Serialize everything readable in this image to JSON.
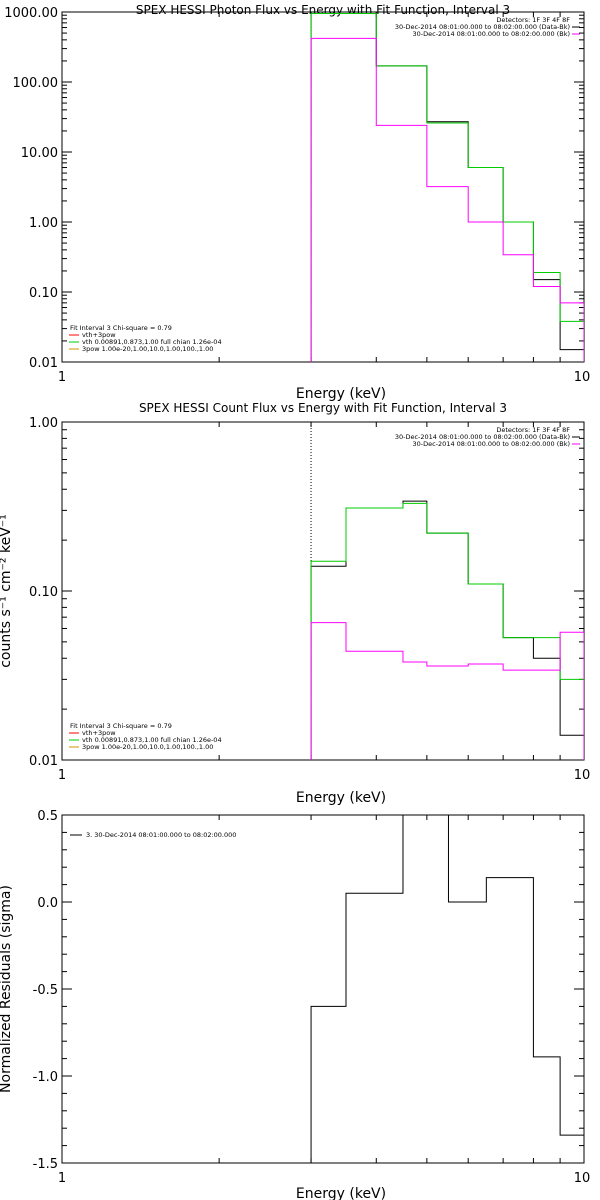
{
  "chart_data": [
    {
      "type": "line",
      "title": "SPEX HESSI Photon Flux vs Energy with Fit Function, Interval 3",
      "xlabel": "Energy (keV)",
      "ylabel": "",
      "xscale": "log",
      "yscale": "log",
      "xlim": [
        1,
        10
      ],
      "ylim": [
        0.01,
        1000
      ],
      "xticks": [
        "1",
        "10"
      ],
      "yticks": [
        {
          "v": 0.01,
          "label": "0.01"
        },
        {
          "v": 0.1,
          "label": "0.10"
        },
        {
          "v": 1,
          "label": "1.00"
        },
        {
          "v": 10,
          "label": "10.00"
        },
        {
          "v": 100,
          "label": "100.00"
        },
        {
          "v": 1000,
          "label": "1000.00"
        }
      ],
      "vline_x": 3.0,
      "legend_top_right": [
        {
          "text": "Detectors: 1F 3F 4F 8F",
          "color": ""
        },
        {
          "text": "30-Dec-2014 08:01:00.000 to 08:02:00.000 (Data-Bk)",
          "color": "#000000"
        },
        {
          "text": "30-Dec-2014 08:01:00.000 to 08:02:00.000 (Bk)",
          "color": "#ff00ff"
        }
      ],
      "legend_bottom_left": [
        {
          "text": "Fit Interval 3   Chi-square = 0.79",
          "color": ""
        },
        {
          "text": "vth+3pow",
          "color": "#ff0000"
        },
        {
          "text": "vth 0.00891,0.873,1.00  full chian 1.26e-04",
          "color": "#00cc00"
        },
        {
          "text": "3pow 1.00e-20,1.00,10.0,1.00,100.,1.00",
          "color": "#cc9900"
        }
      ],
      "edges": [
        3.0,
        3.5,
        4.0,
        4.5,
        5.0,
        5.5,
        6.0,
        6.5,
        7.0,
        8.0,
        9.0,
        10.0
      ],
      "series": [
        {
          "color": "#000000",
          "values": [
            1000,
            1000,
            170,
            170,
            27,
            27,
            6.0,
            6.0,
            1.0,
            0.15,
            0.015
          ]
        },
        {
          "color": "#00cc00",
          "values": [
            950,
            950,
            170,
            170,
            26,
            26,
            6.0,
            6.0,
            1.0,
            0.19,
            0.038
          ]
        },
        {
          "color": "#ff00ff",
          "values": [
            420,
            420,
            24,
            24,
            3.2,
            3.2,
            1.0,
            1.0,
            0.34,
            0.12,
            0.07
          ]
        }
      ]
    },
    {
      "type": "line",
      "title": "SPEX HESSI Count Flux vs Energy with Fit Function, Interval 3",
      "xlabel": "Energy (keV)",
      "ylabel": "counts s⁻¹ cm⁻² keV⁻¹",
      "xscale": "log",
      "yscale": "log",
      "xlim": [
        1,
        10
      ],
      "ylim": [
        0.01,
        1
      ],
      "xticks": [
        "1",
        "10"
      ],
      "yticks": [
        {
          "v": 0.01,
          "label": "0.01"
        },
        {
          "v": 0.1,
          "label": "0.10"
        },
        {
          "v": 1,
          "label": "1.00"
        }
      ],
      "vline_x": 3.0,
      "legend_top_right": [
        {
          "text": "Detectors: 1F 3F 4F 8F",
          "color": ""
        },
        {
          "text": "30-Dec-2014 08:01:00.000 to 08:02:00.000 (Data-Bk)",
          "color": "#000000"
        },
        {
          "text": "30-Dec-2014 08:01:00.000 to 08:02:00.000 (Bk)",
          "color": "#ff00ff"
        }
      ],
      "legend_bottom_left": [
        {
          "text": "Fit Interval 3   Chi-square = 0.79",
          "color": ""
        },
        {
          "text": "vth+3pow",
          "color": "#ff0000"
        },
        {
          "text": "vth 0.00891,0.873,1.00  full chian 1.26e-04",
          "color": "#00cc00"
        },
        {
          "text": "3pow 1.00e-20,1.00,10.0,1.00,100.,1.00",
          "color": "#cc9900"
        }
      ],
      "edges": [
        3.0,
        3.5,
        4.0,
        4.5,
        5.0,
        5.5,
        6.0,
        6.5,
        7.0,
        8.0,
        9.0,
        10.0
      ],
      "series": [
        {
          "color": "#000000",
          "values": [
            0.14,
            0.31,
            0.31,
            0.34,
            0.22,
            0.22,
            0.11,
            0.11,
            0.053,
            0.04,
            0.014
          ]
        },
        {
          "color": "#00cc00",
          "values": [
            0.15,
            0.31,
            0.31,
            0.33,
            0.22,
            0.22,
            0.11,
            0.11,
            0.053,
            0.053,
            0.03
          ]
        },
        {
          "color": "#ff00ff",
          "values": [
            0.065,
            0.044,
            0.044,
            0.038,
            0.036,
            0.036,
            0.037,
            0.037,
            0.034,
            0.034,
            0.057
          ]
        }
      ]
    },
    {
      "type": "line",
      "title": "",
      "xlabel": "Energy (keV)",
      "ylabel": "Normalized Residuals (sigma)",
      "xscale": "log",
      "yscale": "linear",
      "xlim": [
        1,
        10
      ],
      "ylim": [
        -1.5,
        0.5
      ],
      "xticks": [
        "1",
        "10"
      ],
      "yticks": [
        {
          "v": -1.5,
          "label": "-1.5"
        },
        {
          "v": -1.0,
          "label": "-1.0"
        },
        {
          "v": -0.5,
          "label": "-0.5"
        },
        {
          "v": 0.0,
          "label": "0.0"
        },
        {
          "v": 0.5,
          "label": "0.5"
        }
      ],
      "legend_top_left": [
        {
          "text": "3. 30-Dec-2014 08:01:00.000 to 08:02:00.000",
          "color": "#000000"
        }
      ],
      "edges": [
        3.0,
        3.5,
        4.0,
        4.5,
        5.0,
        5.5,
        6.0,
        6.5,
        7.0,
        8.0,
        9.0,
        10.0
      ],
      "series": [
        {
          "color": "#000000",
          "values": [
            -0.6,
            0.05,
            0.05,
            0.5,
            0.5,
            0.0,
            0.0,
            0.14,
            0.14,
            -0.89,
            -1.34
          ]
        }
      ]
    }
  ]
}
